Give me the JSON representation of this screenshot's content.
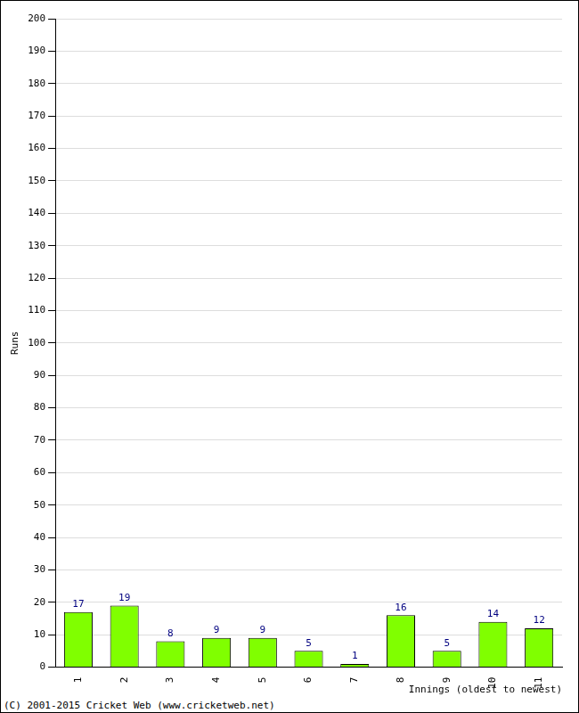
{
  "chart_data": {
    "type": "bar",
    "categories": [
      "1",
      "2",
      "3",
      "4",
      "5",
      "6",
      "7",
      "8",
      "9",
      "10",
      "11"
    ],
    "values": [
      17,
      19,
      8,
      9,
      9,
      5,
      1,
      16,
      5,
      14,
      12
    ],
    "color": "#80ff00",
    "x_label": "Innings (oldest to newest)",
    "y_label": "Runs",
    "ylim": [
      0,
      200
    ],
    "yticks": [
      0,
      10,
      20,
      30,
      40,
      50,
      60,
      70,
      80,
      90,
      100,
      110,
      120,
      130,
      140,
      150,
      160,
      170,
      180,
      190,
      200
    ],
    "grid": true,
    "data_labels": true,
    "annotations": [
      "(C) 2001-2015 Cricket Web (www.cricketweb.net)"
    ]
  }
}
